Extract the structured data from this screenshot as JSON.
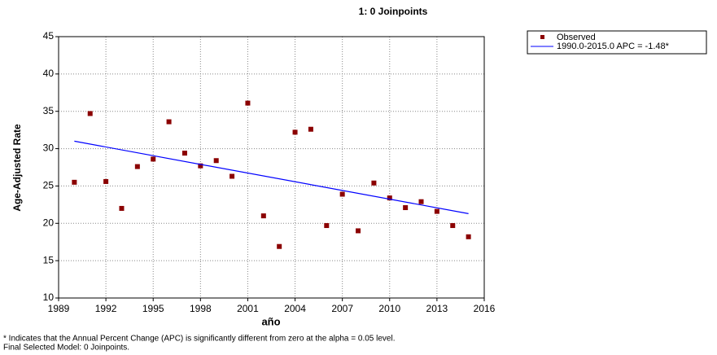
{
  "chart_data": {
    "type": "scatter",
    "title": "1: 0 Joinpoints",
    "x_label": "año",
    "y_label": "Age-Adjusted Rate",
    "xlim": [
      1989,
      2016
    ],
    "xticks": [
      1989,
      1992,
      1995,
      1998,
      2001,
      2004,
      2007,
      2010,
      2013,
      2016
    ],
    "ylim": [
      10,
      45
    ],
    "yticks": [
      10,
      15,
      20,
      25,
      30,
      35,
      40,
      45
    ],
    "grid": true,
    "legend": "outside-top-right",
    "series": [
      {
        "name": "Observed",
        "type": "scatter",
        "color": "#8b0000",
        "x": [
          1990,
          1991,
          1992,
          1993,
          1994,
          1995,
          1996,
          1997,
          1998,
          1999,
          2000,
          2001,
          2002,
          2003,
          2004,
          2005,
          2006,
          2007,
          2008,
          2009,
          2010,
          2011,
          2012,
          2013,
          2014,
          2015
        ],
        "values": [
          25.5,
          34.7,
          25.6,
          22.0,
          27.6,
          28.6,
          33.6,
          29.4,
          27.7,
          28.4,
          26.3,
          36.1,
          21.0,
          16.9,
          32.2,
          32.6,
          19.7,
          23.9,
          19.0,
          25.4,
          23.4,
          22.1,
          22.9,
          21.6,
          19.7,
          18.2
        ]
      },
      {
        "name": "1990.0-2015.0 APC  = -1.48*",
        "type": "line",
        "color": "#0000ff",
        "x": [
          1990,
          2015
        ],
        "values": [
          31.0,
          21.3
        ]
      }
    ],
    "footnotes": [
      "* Indicates that the Annual Percent Change (APC) is significantly different from zero at the alpha = 0.05 level.",
      "Final Selected Model: 0 Joinpoints."
    ]
  }
}
